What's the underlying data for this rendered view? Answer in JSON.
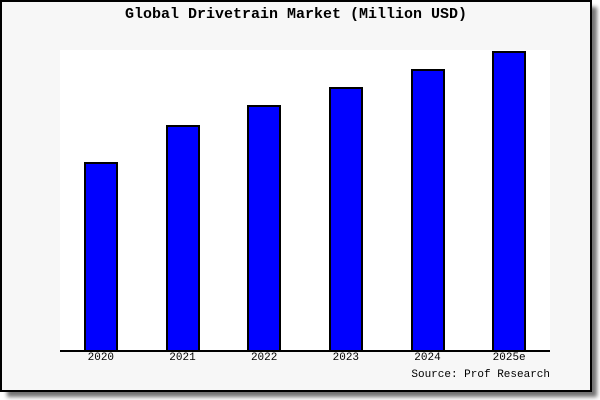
{
  "window": {
    "background_color": "#f7f7f7",
    "plot_background_color": "#ffffff",
    "frame_color": "#000000"
  },
  "chart_data": {
    "type": "bar",
    "title": "Global Drivetrain Market (Million USD)",
    "categories": [
      "2020",
      "2021",
      "2022",
      "2023",
      "2024",
      "2025e"
    ],
    "values": [
      188,
      225,
      245,
      263,
      281,
      299
    ],
    "xlabel": "",
    "ylabel": "",
    "ylim": [
      0,
      300
    ],
    "grid": false,
    "y_axis_visible": false,
    "legend": false,
    "bar_color": "#0000ff",
    "bar_border_color": "#000000"
  },
  "footer": {
    "source_label": "Source: Prof Research"
  }
}
